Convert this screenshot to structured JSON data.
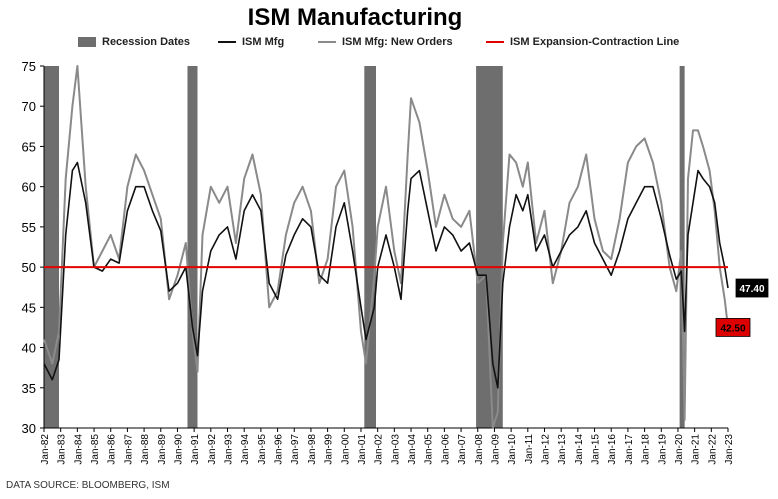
{
  "chart_data": {
    "type": "line",
    "title": "ISM Manufacturing",
    "xlabel": "",
    "ylabel": "",
    "ylim": [
      30,
      75
    ],
    "yticks": [
      30,
      35,
      40,
      45,
      50,
      55,
      60,
      65,
      70,
      75
    ],
    "xlim": [
      1982.0,
      2023.0
    ],
    "xticks": [
      "Jan-82",
      "Jan-83",
      "Jan-84",
      "Jan-85",
      "Jan-86",
      "Jan-87",
      "Jan-88",
      "Jan-89",
      "Jan-90",
      "Jan-91",
      "Jan-92",
      "Jan-93",
      "Jan-94",
      "Jan-95",
      "Jan-96",
      "Jan-97",
      "Jan-98",
      "Jan-99",
      "Jan-00",
      "Jan-01",
      "Jan-02",
      "Jan-03",
      "Jan-04",
      "Jan-05",
      "Jan-06",
      "Jan-07",
      "Jan-08",
      "Jan-09",
      "Jan-10",
      "Jan-11",
      "Jan-12",
      "Jan-13",
      "Jan-14",
      "Jan-15",
      "Jan-16",
      "Jan-17",
      "Jan-18",
      "Jan-19",
      "Jan-20",
      "Jan-21",
      "Jan-22",
      "Jan-23"
    ],
    "legend_position": "top",
    "grid": false,
    "recession_label": "Recession Dates",
    "recessions": [
      [
        1982.0,
        1982.9
      ],
      [
        1990.6,
        1991.2
      ],
      [
        2001.2,
        2001.9
      ],
      [
        2007.9,
        2009.5
      ],
      [
        2020.1,
        2020.4
      ]
    ],
    "reference_line": {
      "name": "ISM Expansion-Contraction Line",
      "value": 50,
      "color": "#e00000"
    },
    "series": [
      {
        "name": "ISM Mfg",
        "color": "#111111",
        "x": [
          1982.0,
          1982.5,
          1982.9,
          1983.3,
          1983.7,
          1984.0,
          1984.5,
          1985.0,
          1985.5,
          1986.0,
          1986.5,
          1987.0,
          1987.5,
          1988.0,
          1988.5,
          1989.0,
          1989.5,
          1990.0,
          1990.5,
          1990.9,
          1991.2,
          1991.5,
          1992.0,
          1992.5,
          1993.0,
          1993.5,
          1994.0,
          1994.5,
          1995.0,
          1995.5,
          1996.0,
          1996.5,
          1997.0,
          1997.5,
          1998.0,
          1998.5,
          1999.0,
          1999.5,
          2000.0,
          2000.5,
          2001.0,
          2001.3,
          2001.8,
          2002.0,
          2002.5,
          2003.0,
          2003.4,
          2003.8,
          2004.0,
          2004.5,
          2005.0,
          2005.5,
          2006.0,
          2006.5,
          2007.0,
          2007.5,
          2008.0,
          2008.5,
          2008.9,
          2009.2,
          2009.5,
          2009.9,
          2010.3,
          2010.7,
          2011.0,
          2011.5,
          2012.0,
          2012.5,
          2013.0,
          2013.5,
          2014.0,
          2014.5,
          2015.0,
          2015.5,
          2016.0,
          2016.5,
          2017.0,
          2017.5,
          2018.0,
          2018.5,
          2019.0,
          2019.5,
          2019.9,
          2020.2,
          2020.4,
          2020.6,
          2020.9,
          2021.2,
          2021.5,
          2021.9,
          2022.2,
          2022.5,
          2022.8,
          2023.0
        ],
        "y": [
          38.0,
          36.0,
          38.5,
          54.0,
          62.0,
          63.0,
          58.0,
          50.0,
          49.5,
          51.0,
          50.5,
          57.0,
          60.0,
          60.0,
          57.0,
          54.5,
          47.0,
          48.0,
          50.0,
          42.5,
          39.0,
          47.0,
          52.0,
          54.0,
          55.0,
          51.0,
          57.0,
          59.0,
          57.0,
          48.0,
          46.0,
          51.5,
          54.0,
          56.0,
          55.0,
          49.0,
          48.0,
          55.0,
          58.0,
          52.0,
          45.0,
          41.0,
          45.0,
          50.0,
          54.0,
          50.0,
          46.0,
          57.0,
          61.0,
          62.0,
          57.0,
          52.0,
          55.0,
          54.0,
          52.0,
          53.0,
          49.0,
          49.0,
          38.0,
          35.0,
          48.0,
          55.0,
          59.0,
          57.0,
          59.0,
          52.0,
          54.0,
          50.0,
          52.0,
          54.0,
          55.0,
          57.0,
          53.0,
          51.0,
          49.0,
          52.0,
          56.0,
          58.0,
          60.0,
          60.0,
          56.0,
          51.5,
          48.5,
          49.5,
          42.0,
          54.0,
          58.0,
          62.0,
          61.0,
          60.0,
          58.0,
          53.0,
          50.0,
          47.4
        ]
      },
      {
        "name": "ISM Mfg: New Orders",
        "color": "#8a8a8a",
        "x": [
          1982.0,
          1982.5,
          1982.9,
          1983.3,
          1983.7,
          1984.0,
          1984.5,
          1985.0,
          1985.5,
          1986.0,
          1986.5,
          1987.0,
          1987.5,
          1988.0,
          1988.5,
          1989.0,
          1989.5,
          1990.0,
          1990.5,
          1990.9,
          1991.2,
          1991.5,
          1992.0,
          1992.5,
          1993.0,
          1993.5,
          1994.0,
          1994.5,
          1995.0,
          1995.5,
          1996.0,
          1996.5,
          1997.0,
          1997.5,
          1998.0,
          1998.5,
          1999.0,
          1999.5,
          2000.0,
          2000.5,
          2001.0,
          2001.3,
          2001.8,
          2002.0,
          2002.5,
          2003.0,
          2003.4,
          2003.8,
          2004.0,
          2004.5,
          2005.0,
          2005.5,
          2006.0,
          2006.5,
          2007.0,
          2007.5,
          2008.0,
          2008.5,
          2008.9,
          2009.2,
          2009.5,
          2009.9,
          2010.3,
          2010.7,
          2011.0,
          2011.5,
          2012.0,
          2012.5,
          2013.0,
          2013.5,
          2014.0,
          2014.5,
          2015.0,
          2015.5,
          2016.0,
          2016.5,
          2017.0,
          2017.5,
          2018.0,
          2018.5,
          2019.0,
          2019.5,
          2019.9,
          2020.2,
          2020.4,
          2020.6,
          2020.9,
          2021.2,
          2021.5,
          2021.9,
          2022.2,
          2022.5,
          2022.8,
          2023.0
        ],
        "y": [
          41.0,
          38.0,
          42.0,
          61.0,
          70.0,
          75.0,
          60.0,
          50.0,
          52.0,
          54.0,
          51.0,
          60.0,
          64.0,
          62.0,
          59.0,
          56.0,
          46.0,
          49.0,
          53.0,
          42.0,
          37.0,
          54.0,
          60.0,
          58.0,
          60.0,
          53.0,
          61.0,
          64.0,
          59.0,
          45.0,
          47.0,
          54.0,
          58.0,
          60.0,
          57.0,
          48.0,
          51.0,
          60.0,
          62.0,
          55.0,
          42.0,
          38.0,
          49.0,
          55.0,
          60.0,
          52.0,
          48.0,
          64.0,
          71.0,
          68.0,
          62.0,
          55.0,
          59.0,
          56.0,
          55.0,
          57.0,
          48.0,
          49.0,
          30.0,
          32.0,
          53.0,
          64.0,
          63.0,
          60.0,
          63.0,
          53.0,
          57.0,
          48.0,
          52.0,
          58.0,
          60.0,
          64.0,
          56.0,
          52.0,
          51.0,
          56.0,
          63.0,
          65.0,
          66.0,
          63.0,
          58.0,
          50.0,
          47.0,
          52.0,
          31.0,
          61.0,
          67.0,
          67.0,
          65.0,
          62.0,
          57.0,
          50.0,
          46.0,
          42.5
        ]
      }
    ],
    "end_labels": [
      {
        "series": "ISM Mfg",
        "text": "47.40",
        "value": 47.4,
        "bg": "#000000",
        "fg": "#ffffff"
      },
      {
        "series": "ISM Mfg: New Orders",
        "text": "42.50",
        "value": 42.5,
        "bg": "#dd0000",
        "fg": "#000000"
      }
    ],
    "source": "DATA SOURCE: BLOOMBERG, ISM"
  }
}
